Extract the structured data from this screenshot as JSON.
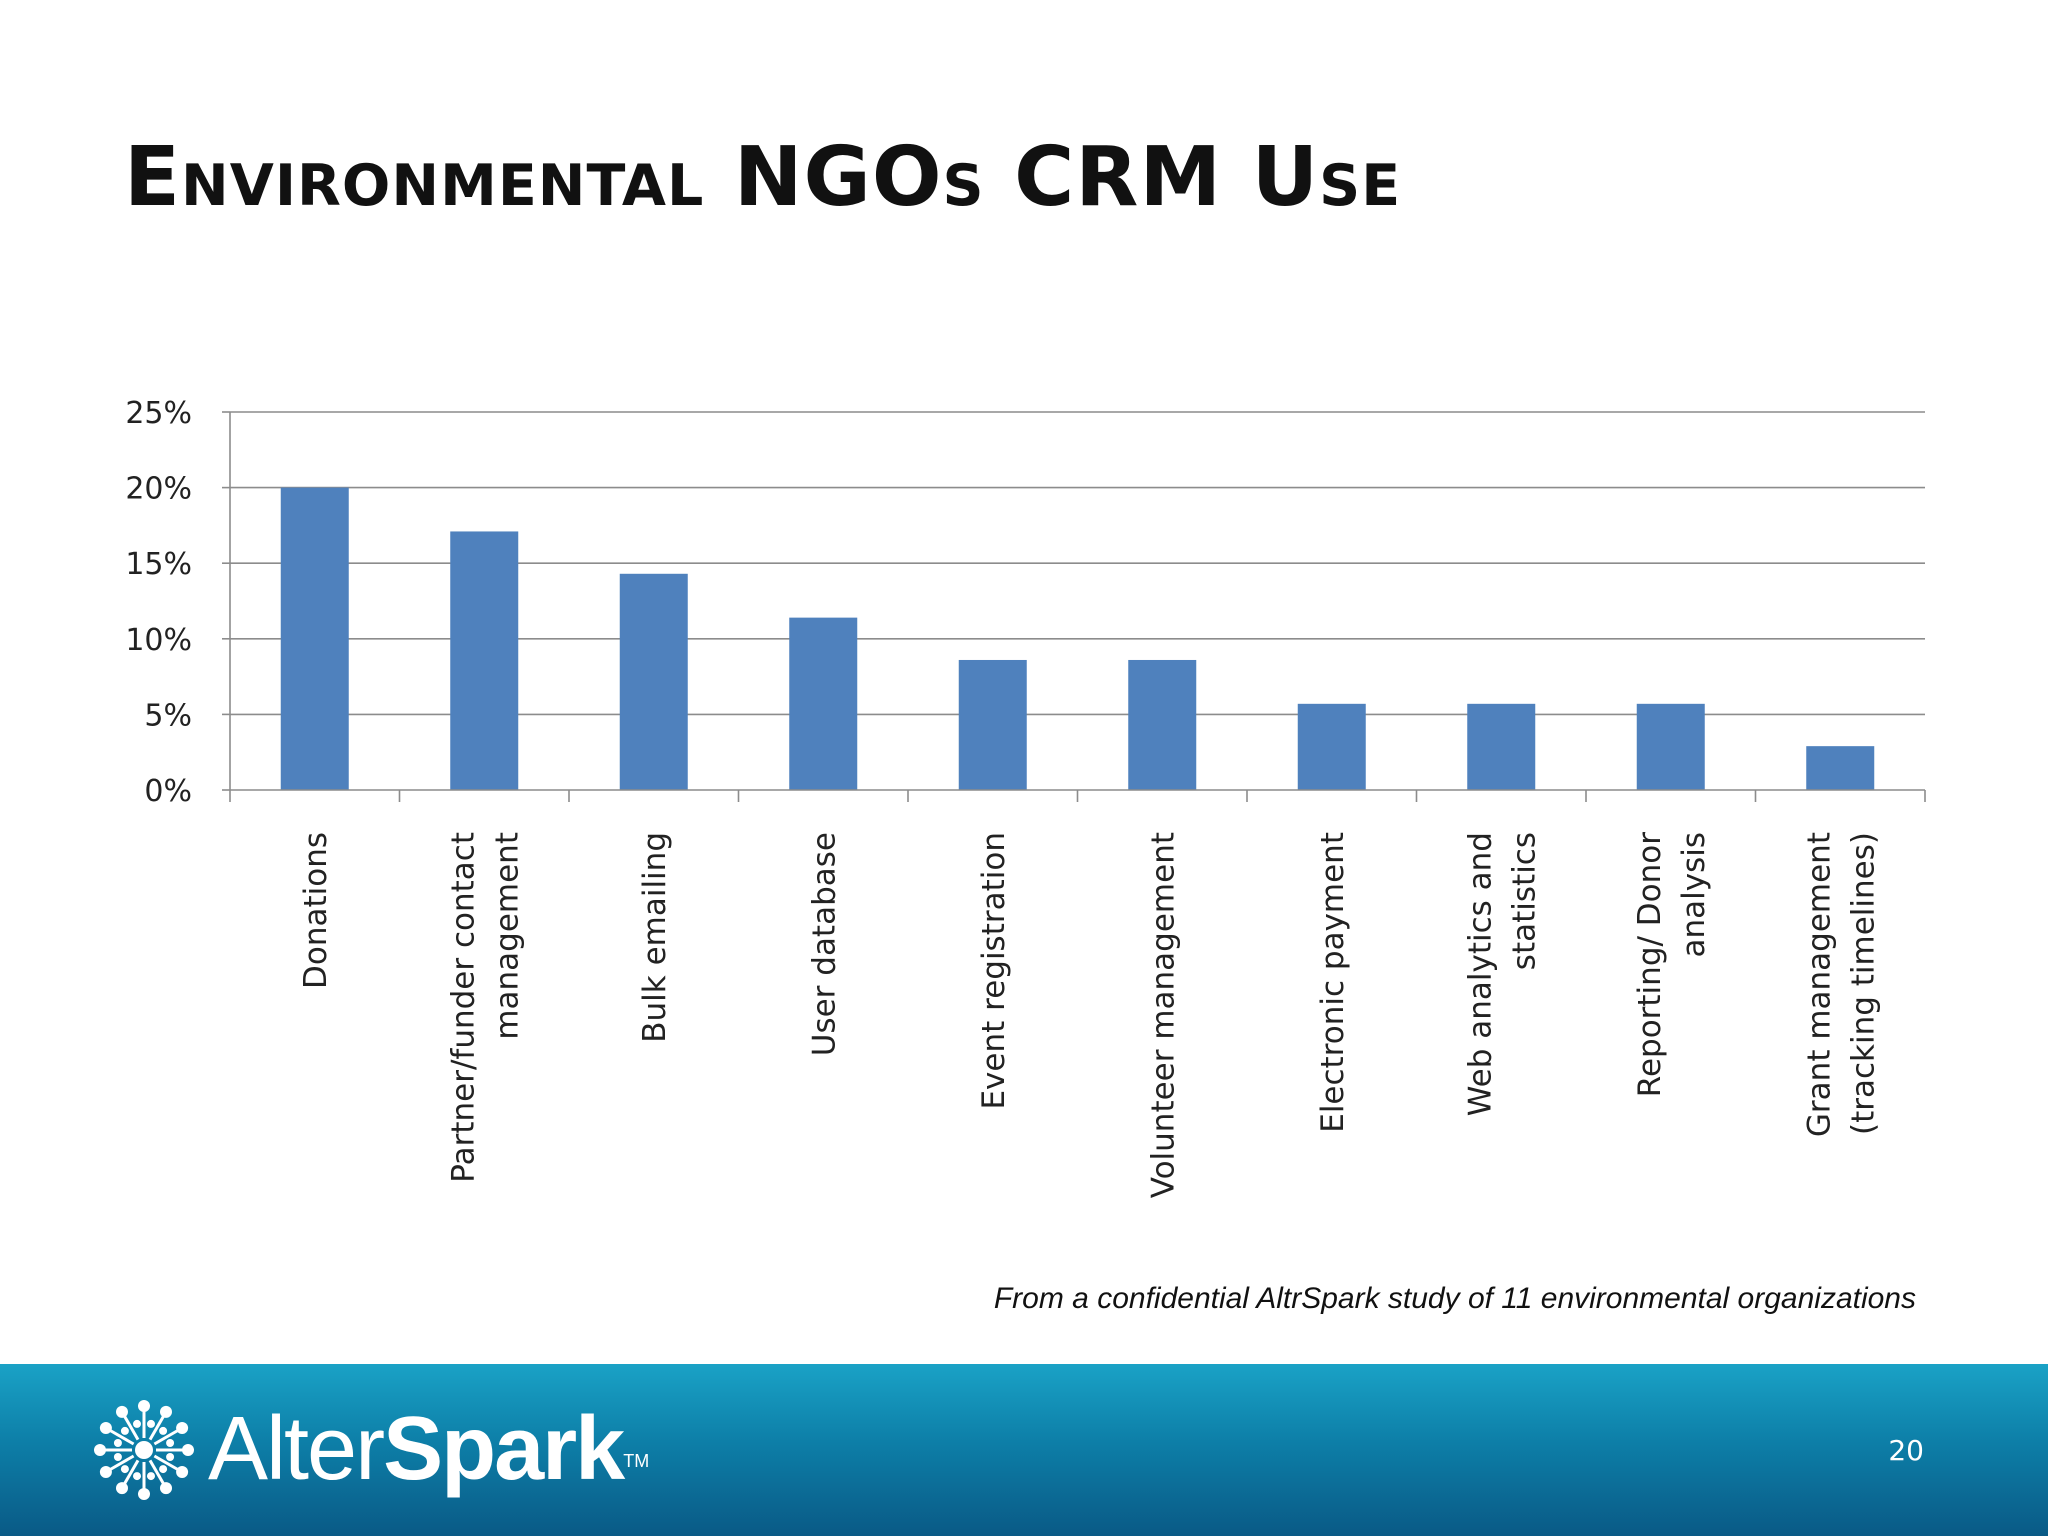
{
  "slide": {
    "title": "Environmental NGOs CRM Use",
    "caption": "From a confidential AltrSpark study of 11 environmental organizations",
    "page_number": "20"
  },
  "footer": {
    "logo": {
      "text_light": "Alter",
      "text_bold": "Spark",
      "trademark": "TM",
      "icon": "spark-burst-icon"
    }
  },
  "colors": {
    "bar": "#4f81bd",
    "grid": "#8c8c8c",
    "axis": "#8c8c8c",
    "text": "#111111",
    "footer_top": "#1aa2c6",
    "footer_bottom": "#0a5a86"
  },
  "chart_data": {
    "type": "bar",
    "title": "",
    "xlabel": "",
    "ylabel": "",
    "ylim": [
      0,
      25
    ],
    "yticks": [
      0,
      5,
      10,
      15,
      20,
      25
    ],
    "ytick_labels": [
      "0%",
      "5%",
      "10%",
      "15%",
      "20%",
      "25%"
    ],
    "grid": true,
    "legend": "none",
    "categories": [
      [
        "Donations"
      ],
      [
        "Partner/funder contact",
        "management"
      ],
      [
        "Bulk emailing"
      ],
      [
        "User database"
      ],
      [
        "Event registration"
      ],
      [
        "Volunteer management"
      ],
      [
        "Electronic payment"
      ],
      [
        "Web analytics and",
        "statistics"
      ],
      [
        "Reporting/ Donor",
        "analysis"
      ],
      [
        "Grant management",
        "(tracking timelines)"
      ]
    ],
    "values": [
      20,
      17.1,
      14.3,
      11.4,
      8.6,
      8.6,
      5.7,
      5.7,
      5.7,
      2.9
    ],
    "unit": "%"
  }
}
